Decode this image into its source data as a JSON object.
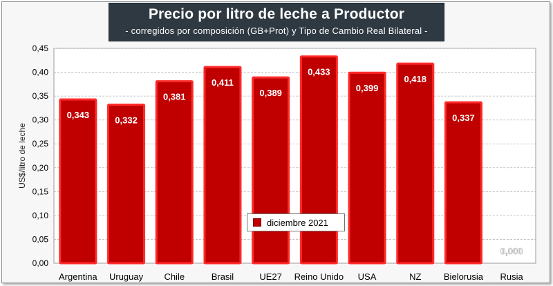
{
  "title": "Precio por litro de leche a Productor",
  "subtitle": "-  corregidos por composición (GB+Prot) y Tipo de Cambio Real Bilateral -",
  "colors": {
    "bar": "#c00000",
    "bar_border": "#ff2a2a",
    "title_bg": "#2e3942"
  },
  "chart_data": {
    "type": "bar",
    "categories": [
      "Argentina",
      "Uruguay",
      "Chile",
      "Brasil",
      "UE27",
      "Reino Unido",
      "USA",
      "NZ",
      "Bielorusia",
      "Rusia"
    ],
    "series": [
      {
        "name": "diciembre 2021",
        "values": [
          0.343,
          0.332,
          0.381,
          0.411,
          0.389,
          0.433,
          0.399,
          0.418,
          0.337,
          0.0
        ]
      }
    ],
    "data_labels": [
      "0,343",
      "0,332",
      "0,381",
      "0,411",
      "0,389",
      "0,433",
      "0,399",
      "0,418",
      "0,337",
      "0,000"
    ],
    "ylabel": "US$/litro de leche",
    "xlabel": "",
    "ylim": [
      0,
      0.45
    ],
    "yticks": [
      0,
      0.05,
      0.1,
      0.15,
      0.2,
      0.25,
      0.3,
      0.35,
      0.4,
      0.45
    ],
    "ytick_labels": [
      "0,00",
      "0,05",
      "0,10",
      "0,15",
      "0,20",
      "0,25",
      "0,30",
      "0,35",
      "0,40",
      "0,45"
    ],
    "grid": true,
    "legend_position": "bottom-center"
  }
}
